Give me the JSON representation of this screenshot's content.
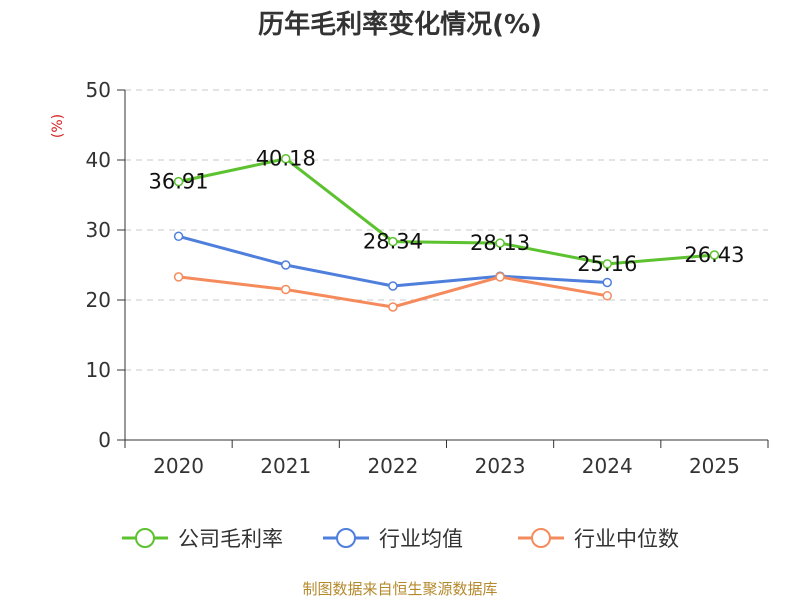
{
  "chart_data": {
    "type": "line",
    "title": "历年毛利率变化情况(%)",
    "ylabel": "(%)",
    "xlabel": "",
    "categories": [
      "2020",
      "2021",
      "2022",
      "2023",
      "2024",
      "2025"
    ],
    "ylim": [
      0,
      50
    ],
    "yticks": [
      0,
      10,
      20,
      30,
      40,
      50
    ],
    "grid": true,
    "legend_position": "bottom",
    "series": [
      {
        "name": "公司毛利率",
        "color": "#5cc22f",
        "values": [
          36.91,
          40.18,
          28.34,
          28.13,
          25.16,
          26.43
        ],
        "labels": [
          "36.91",
          "40.18",
          "28.34",
          "28.13",
          "25.16",
          "26.43"
        ]
      },
      {
        "name": "行业均值",
        "color": "#4f7fdc",
        "values": [
          29.1,
          25.0,
          22.0,
          23.4,
          22.5,
          null
        ],
        "labels": []
      },
      {
        "name": "行业中位数",
        "color": "#f58b5c",
        "values": [
          23.3,
          21.5,
          19.0,
          23.3,
          20.6,
          null
        ],
        "labels": []
      }
    ]
  },
  "footer": {
    "source": "制图数据来自恒生聚源数据库"
  }
}
